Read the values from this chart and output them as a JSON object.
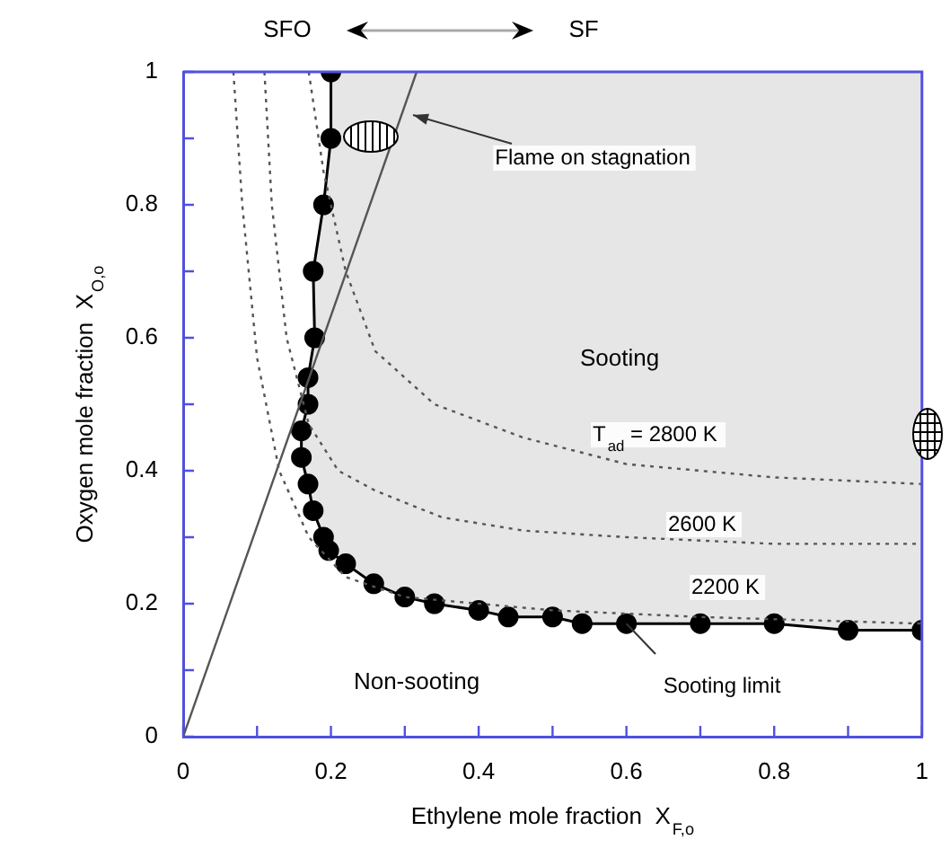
{
  "chart_data": {
    "type": "line",
    "xlabel": "Ethylene mole fraction  X$_{F,o}$",
    "ylabel": "Oxygen mole fraction  X$_{O,o}$",
    "xlim": [
      0,
      1
    ],
    "ylim": [
      0,
      1
    ],
    "xticks": [
      0,
      {
        "value": 0.1,
        "label": null
      },
      0.2,
      {
        "value": 0.3,
        "label": null
      },
      0.4,
      {
        "value": 0.5,
        "label": null
      },
      0.6,
      {
        "value": 0.7,
        "label": null
      },
      0.8,
      {
        "value": 0.9,
        "label": null
      },
      1
    ],
    "yticks": [
      0,
      {
        "value": 0.1,
        "label": null
      },
      0.2,
      {
        "value": 0.3,
        "label": null
      },
      0.4,
      {
        "value": 0.5,
        "label": null
      },
      0.6,
      {
        "value": 0.7,
        "label": null
      },
      0.8,
      {
        "value": 0.9,
        "label": null
      },
      1
    ],
    "grid": false,
    "legend": false,
    "annotations": [
      "SFO",
      "SF",
      "Sooting",
      "Non-sooting"
    ],
    "series": [
      {
        "name": "Sooting limit",
        "type": "line",
        "color": "#000000",
        "marker": "circle",
        "line_style": "solid",
        "x": [
          0.2,
          0.2,
          0.19,
          0.176,
          0.178,
          0.169,
          0.169,
          0.16,
          0.16,
          0.169,
          0.176,
          0.19,
          0.197,
          0.22,
          0.258,
          0.3,
          0.34,
          0.4,
          0.44,
          0.5,
          0.54,
          0.6,
          0.7,
          0.8,
          0.9,
          1.0
        ],
        "values": [
          1.0,
          0.9,
          0.8,
          0.7,
          0.6,
          0.54,
          0.5,
          0.46,
          0.42,
          0.38,
          0.34,
          0.3,
          0.28,
          0.26,
          0.23,
          0.21,
          0.2,
          0.19,
          0.18,
          0.18,
          0.17,
          0.17,
          0.17,
          0.17,
          0.16,
          0.16
        ]
      },
      {
        "name": "Flame on stagnation",
        "type": "line",
        "color": "#555555",
        "marker": "none",
        "line_style": "solid",
        "x": [
          0,
          0.316
        ],
        "values": [
          0,
          1
        ]
      },
      {
        "name": "T$_{ad}$ = 2800 K",
        "type": "line",
        "color": "#555555",
        "marker": "none",
        "line_style": "dotted",
        "x": [
          0.17,
          0.19,
          0.22,
          0.26,
          0.34,
          0.46,
          0.6,
          0.8,
          1.0
        ],
        "values": [
          1.0,
          0.85,
          0.7,
          0.58,
          0.5,
          0.45,
          0.41,
          0.39,
          0.38
        ]
      },
      {
        "name": "2600 K",
        "type": "line",
        "color": "#555555",
        "marker": "none",
        "line_style": "dotted",
        "x": [
          0.11,
          0.12,
          0.14,
          0.17,
          0.21,
          0.26,
          0.35,
          0.46,
          0.6,
          0.8,
          1.0
        ],
        "values": [
          1.0,
          0.8,
          0.6,
          0.47,
          0.4,
          0.37,
          0.33,
          0.31,
          0.3,
          0.29,
          0.29
        ]
      },
      {
        "name": "2200 K",
        "type": "line",
        "color": "#555555",
        "marker": "none",
        "line_style": "dotted",
        "x": [
          0.068,
          0.08,
          0.1,
          0.13,
          0.17,
          0.22,
          0.3,
          0.5,
          0.7,
          1.0
        ],
        "values": [
          1.0,
          0.8,
          0.57,
          0.4,
          0.3,
          0.24,
          0.21,
          0.19,
          0.18,
          0.17
        ]
      }
    ]
  }
}
